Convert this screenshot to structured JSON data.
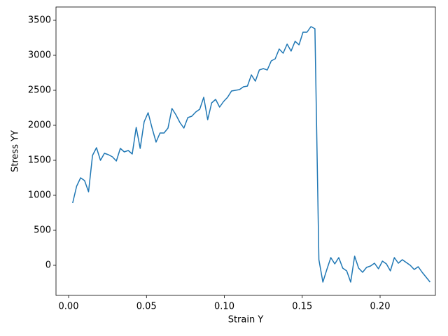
{
  "chart_data": {
    "type": "line",
    "x_label": "Strain Y",
    "y_label": "Stress YY",
    "x": [
      0.0026,
      0.00515,
      0.0077,
      0.01025,
      0.0128,
      0.01535,
      0.0179,
      0.02045,
      0.023,
      0.02555,
      0.0281,
      0.03065,
      0.0332,
      0.03575,
      0.0383,
      0.04085,
      0.0434,
      0.04595,
      0.0485,
      0.05105,
      0.0536,
      0.05615,
      0.0587,
      0.06125,
      0.0638,
      0.06635,
      0.0689,
      0.07145,
      0.074,
      0.07655,
      0.0791,
      0.08165,
      0.0842,
      0.08675,
      0.0893,
      0.09185,
      0.0944,
      0.09695,
      0.0995,
      0.10205,
      0.1046,
      0.10715,
      0.1097,
      0.11225,
      0.1148,
      0.11735,
      0.1199,
      0.12245,
      0.125,
      0.12755,
      0.1301,
      0.13265,
      0.1352,
      0.13775,
      0.1403,
      0.14285,
      0.1454,
      0.14795,
      0.1505,
      0.15305,
      0.1556,
      0.15815,
      0.1607,
      0.16325,
      0.1658,
      0.16835,
      0.1709,
      0.17345,
      0.176,
      0.17855,
      0.1811,
      0.18365,
      0.1862,
      0.18875,
      0.1913,
      0.19385,
      0.1964,
      0.19895,
      0.2015,
      0.20405,
      0.2066,
      0.20915,
      0.2117,
      0.21425,
      0.2168,
      0.21935,
      0.2219,
      0.22445,
      0.227,
      0.22955,
      0.2321
    ],
    "series": [
      {
        "color": "#1f77b4",
        "values": [
          890,
          1130,
          1250,
          1210,
          1050,
          1570,
          1680,
          1500,
          1600,
          1580,
          1550,
          1490,
          1670,
          1620,
          1640,
          1590,
          1970,
          1670,
          2050,
          2180,
          1960,
          1760,
          1890,
          1890,
          1960,
          2240,
          2150,
          2040,
          1960,
          2110,
          2130,
          2190,
          2230,
          2400,
          2080,
          2320,
          2370,
          2260,
          2340,
          2400,
          2490,
          2500,
          2510,
          2550,
          2560,
          2720,
          2630,
          2790,
          2810,
          2790,
          2920,
          2950,
          3090,
          3030,
          3160,
          3060,
          3200,
          3150,
          3330,
          3330,
          3410,
          3380,
          80,
          -240,
          -60,
          110,
          20,
          110,
          -40,
          -80,
          -240,
          130,
          -40,
          -100,
          -30,
          -10,
          30,
          -50,
          60,
          20,
          -80,
          110,
          30,
          80,
          40,
          0,
          -60,
          -20,
          -100,
          -170,
          -240
        ]
      }
    ],
    "xlim": [
      -0.0081,
      0.2355
    ],
    "ylim": [
      -430,
      3690
    ],
    "xticks": [
      {
        "value": 0,
        "label": "0.00"
      },
      {
        "value": 0.05,
        "label": "0.05"
      },
      {
        "value": 0.1,
        "label": "0.10"
      },
      {
        "value": 0.15,
        "label": "0.15"
      },
      {
        "value": 0.2,
        "label": "0.20"
      }
    ],
    "yticks": [
      0,
      500,
      1000,
      1500,
      2000,
      2500,
      3000,
      3500
    ],
    "grid": false
  }
}
